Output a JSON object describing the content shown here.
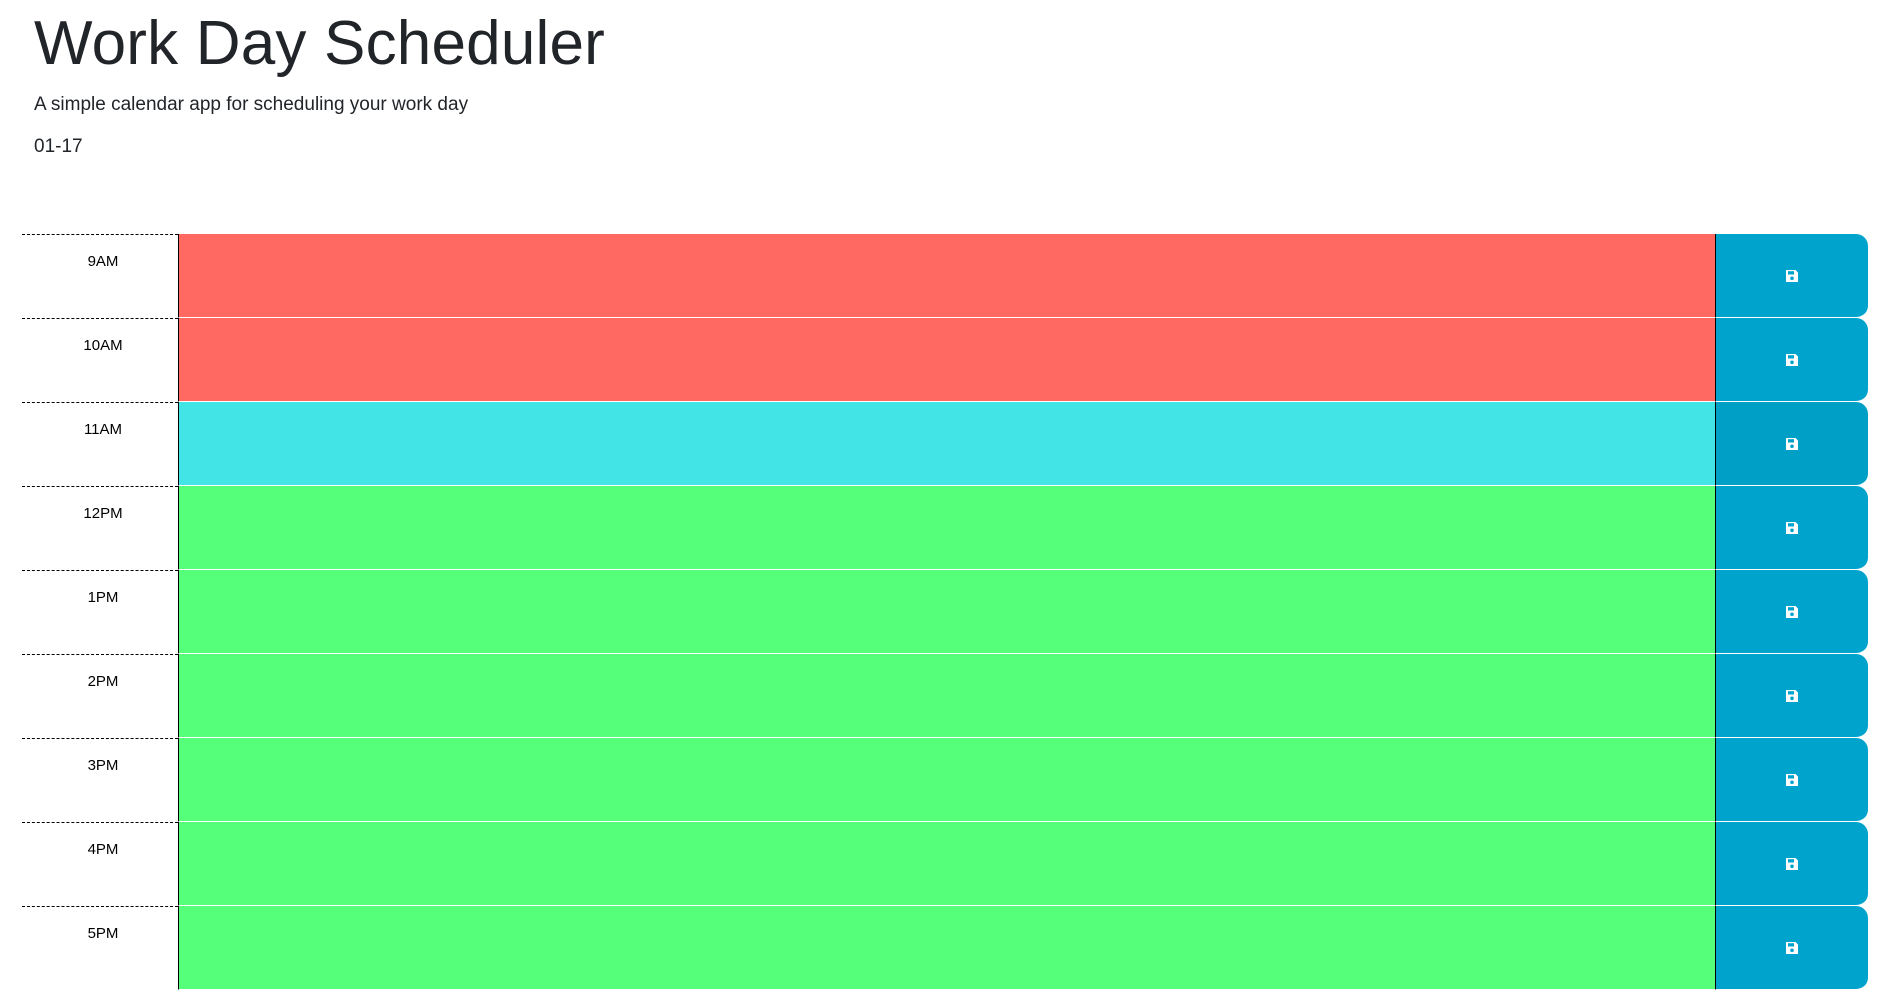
{
  "header": {
    "title": "Work Day Scheduler",
    "lead": "A simple calendar app for scheduling your work day",
    "current_day": "01-17"
  },
  "colors": {
    "past": "#ff6961",
    "present": "#42e4e6",
    "future": "#56ff7a",
    "save_button": "#00a3cc"
  },
  "hours": [
    {
      "label": "9AM",
      "state": "past",
      "text": ""
    },
    {
      "label": "10AM",
      "state": "past",
      "text": ""
    },
    {
      "label": "11AM",
      "state": "present",
      "text": ""
    },
    {
      "label": "12PM",
      "state": "future",
      "text": ""
    },
    {
      "label": "1PM",
      "state": "future",
      "text": ""
    },
    {
      "label": "2PM",
      "state": "future",
      "text": ""
    },
    {
      "label": "3PM",
      "state": "future",
      "text": ""
    },
    {
      "label": "4PM",
      "state": "future",
      "text": ""
    },
    {
      "label": "5PM",
      "state": "future",
      "text": ""
    }
  ],
  "save_icon": "floppy-disk-icon"
}
